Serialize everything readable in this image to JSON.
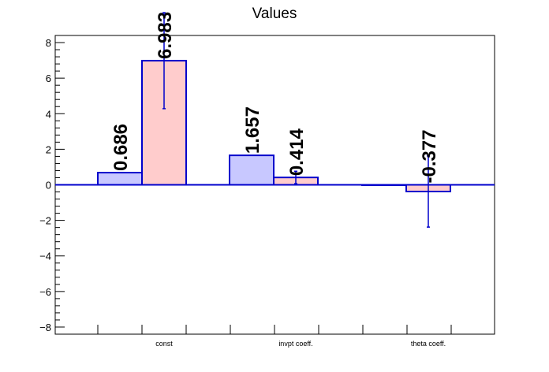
{
  "chart_data": {
    "type": "bar",
    "title": "Values",
    "xlabel": "",
    "ylabel": "",
    "categories": [
      "const",
      "invpt coeff.",
      "theta coeff."
    ],
    "ylim": [
      -8.4,
      8.4
    ],
    "yticks": [
      -8,
      -6,
      -4,
      -2,
      0,
      2,
      4,
      6,
      8
    ],
    "grid": false,
    "legend": "none",
    "series": [
      {
        "values": [
          0.686,
          1.657,
          0
        ],
        "errors": [
          0,
          0,
          0
        ],
        "labels": [
          "0.686",
          "1.657",
          ""
        ],
        "fill": "#c8c8ff",
        "stroke": "#0000cc"
      },
      {
        "values": [
          6.983,
          0.414,
          -0.377
        ],
        "errors": [
          2.7,
          0.35,
          2.0
        ],
        "labels": [
          "6.983",
          "0.414",
          "-0.377"
        ],
        "fill": "#ffcccc",
        "stroke": "#0000cc"
      }
    ]
  }
}
